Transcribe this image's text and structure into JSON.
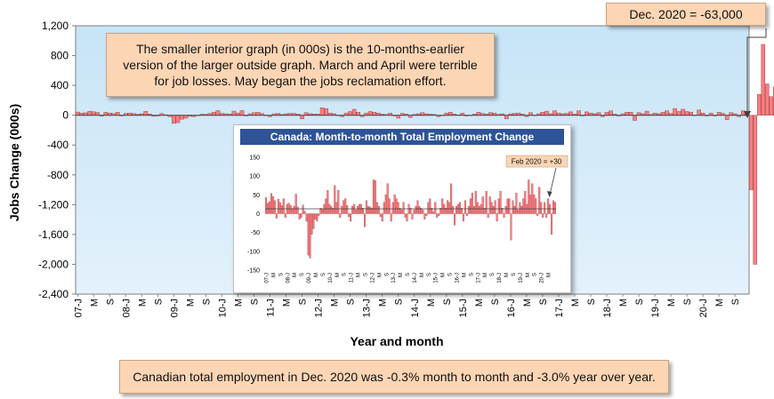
{
  "chart_data": [
    {
      "type": "bar",
      "ylabel": "Jobs Change (000s)",
      "xlabel": "Year and month",
      "ylim": [
        -2400,
        1200
      ],
      "yticks": [
        1200,
        800,
        400,
        0,
        -400,
        -800,
        -1200,
        -1600,
        -2000,
        -2400
      ],
      "ytick_labels": [
        "1,200",
        "800",
        "400",
        "0",
        "-400",
        "-800",
        "-1,200",
        "-1,600",
        "-2,000",
        "-2,400"
      ],
      "x_start": "2007-01",
      "xtick_labels": [
        "07-J",
        "M",
        "S",
        "08-J",
        "M",
        "S",
        "09-J",
        "M",
        "S",
        "10-J",
        "M",
        "S",
        "11-J",
        "M",
        "S",
        "12-J",
        "M",
        "S",
        "13-J",
        "M",
        "S",
        "14-J",
        "M",
        "S",
        "15-J",
        "M",
        "S",
        "16-J",
        "M",
        "S",
        "17-J",
        "M",
        "S",
        "18-J",
        "M",
        "S",
        "19-J",
        "M",
        "S",
        "20-J",
        "M",
        "S"
      ],
      "values": [
        43,
        28,
        32,
        54,
        46,
        35,
        -12,
        39,
        30,
        22,
        40,
        -10,
        25,
        28,
        22,
        14,
        20,
        52,
        18,
        -15,
        -10,
        23,
        7,
        -20,
        -110,
        -100,
        -55,
        -40,
        -15,
        -20,
        -5,
        15,
        12,
        25,
        40,
        62,
        25,
        20,
        15,
        55,
        30,
        62,
        -10,
        20,
        35,
        40,
        22,
        -8,
        -20,
        20,
        25,
        10,
        20,
        25,
        25,
        15,
        -50,
        35,
        20,
        18,
        15,
        100,
        90,
        30,
        20,
        -8,
        -20,
        30,
        50,
        80,
        40,
        -20,
        30,
        50,
        40,
        30,
        15,
        10,
        30,
        -10,
        -40,
        25,
        15,
        -30,
        10,
        20,
        35,
        20,
        15,
        10,
        -20,
        -5,
        30,
        40,
        15,
        5,
        30,
        -10,
        -5,
        15,
        40,
        25,
        15,
        35,
        30,
        10,
        20,
        -50,
        20,
        25,
        30,
        15,
        -20,
        35,
        -5,
        20,
        40,
        55,
        20,
        60,
        30,
        20,
        25,
        45,
        15,
        60,
        -10,
        45,
        30,
        20,
        35,
        -20,
        40,
        60,
        15,
        -10,
        20,
        40,
        40,
        -70,
        35,
        20,
        55,
        10,
        30,
        20,
        40,
        60,
        25,
        90,
        50,
        80,
        50,
        40,
        -5,
        70,
        30,
        -10,
        30,
        -10,
        40,
        25,
        -60,
        35,
        20,
        -20,
        60,
        30,
        -1000,
        -2000,
        280,
        950,
        420,
        250,
        380,
        80,
        -60
      ],
      "annotation": "Dec. 2020 = -63,000",
      "note": "The smaller interior graph (in 000s) is the 10-months-earlier version of the larger outside graph. March and April were terrible for job losses. May began the jobs reclamation effort.",
      "bar_color": "#ff7c80"
    },
    {
      "type": "bar",
      "title": "Canada: Month-to-month Total Employment Change",
      "ylim": [
        -150,
        150
      ],
      "yticks": [
        150,
        100,
        50,
        0,
        -50,
        -100,
        -150
      ],
      "x_start": "2007-01",
      "xtick_labels": [
        "07-J",
        "M",
        "S",
        "08-J",
        "M",
        "S",
        "09-J",
        "M",
        "S",
        "10-J",
        "M",
        "S",
        "11-J",
        "M",
        "S",
        "12-J",
        "M",
        "S",
        "13-J",
        "M",
        "S",
        "14-J",
        "M",
        "S",
        "15-J",
        "M",
        "S",
        "16-J",
        "M",
        "S",
        "17-J",
        "M",
        "S",
        "18-J",
        "M",
        "S",
        "19-J",
        "M",
        "S",
        "20-J",
        "M"
      ],
      "values": [
        43,
        28,
        32,
        54,
        46,
        35,
        -12,
        39,
        30,
        22,
        40,
        -10,
        25,
        28,
        22,
        14,
        20,
        52,
        18,
        -15,
        -10,
        23,
        7,
        -20,
        -110,
        -118,
        -55,
        -40,
        -15,
        -20,
        -5,
        15,
        12,
        25,
        40,
        62,
        25,
        20,
        15,
        75,
        30,
        62,
        -10,
        20,
        35,
        40,
        22,
        -8,
        -20,
        20,
        25,
        10,
        20,
        25,
        25,
        15,
        -35,
        35,
        20,
        18,
        15,
        90,
        88,
        30,
        20,
        -8,
        -20,
        30,
        50,
        80,
        40,
        -20,
        30,
        50,
        40,
        30,
        15,
        10,
        30,
        -10,
        -20,
        25,
        15,
        -15,
        10,
        20,
        35,
        20,
        15,
        10,
        -15,
        -5,
        30,
        40,
        15,
        5,
        30,
        -10,
        -5,
        15,
        40,
        25,
        15,
        35,
        30,
        80,
        20,
        -30,
        20,
        25,
        30,
        15,
        -20,
        35,
        -5,
        20,
        40,
        55,
        20,
        60,
        30,
        20,
        25,
        45,
        15,
        60,
        -10,
        45,
        30,
        20,
        35,
        -20,
        40,
        60,
        15,
        -10,
        20,
        40,
        40,
        -70,
        35,
        20,
        55,
        10,
        30,
        20,
        40,
        60,
        25,
        90,
        50,
        80,
        50,
        40,
        -5,
        70,
        30,
        -10,
        30,
        -10,
        40,
        25,
        -55,
        35,
        30
      ],
      "annotation": "Feb 2020 =  +30",
      "bar_color": "#ff7c80"
    }
  ],
  "bottom_note": "Canadian total employment in Dec. 2020 was -0.3% month to month and -3.0% year over year."
}
